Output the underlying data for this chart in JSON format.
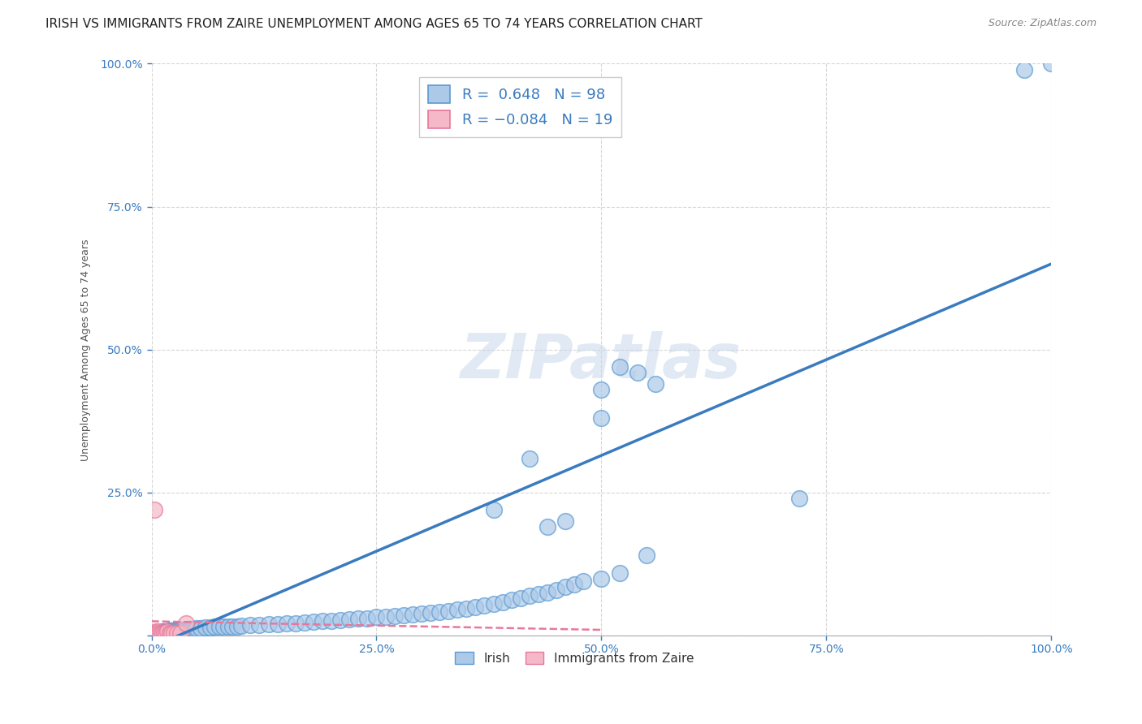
{
  "title": "IRISH VS IMMIGRANTS FROM ZAIRE UNEMPLOYMENT AMONG AGES 65 TO 74 YEARS CORRELATION CHART",
  "source": "Source: ZipAtlas.com",
  "ylabel": "Unemployment Among Ages 65 to 74 years",
  "xlim": [
    0.0,
    1.0
  ],
  "ylim": [
    0.0,
    1.0
  ],
  "irish_R": 0.648,
  "irish_N": 98,
  "zaire_R": -0.084,
  "zaire_N": 19,
  "irish_color": "#adc9e8",
  "irish_edge_color": "#5b9bd5",
  "zaire_color": "#f4b8c8",
  "zaire_edge_color": "#e8789a",
  "irish_line_color": "#3a7bbf",
  "zaire_line_color": "#d45f7a",
  "background_color": "#ffffff",
  "grid_color": "#cccccc",
  "watermark": "ZIPatlas",
  "title_fontsize": 11,
  "axis_label_fontsize": 9,
  "irish_line_x": [
    0.0,
    1.0
  ],
  "irish_line_y": [
    -0.02,
    0.65
  ],
  "zaire_line_x": [
    0.0,
    0.5
  ],
  "zaire_line_y": [
    0.025,
    0.01
  ],
  "irish_x": [
    0.002,
    0.003,
    0.004,
    0.005,
    0.006,
    0.007,
    0.008,
    0.009,
    0.01,
    0.011,
    0.012,
    0.013,
    0.014,
    0.015,
    0.016,
    0.017,
    0.018,
    0.019,
    0.02,
    0.021,
    0.022,
    0.024,
    0.026,
    0.028,
    0.03,
    0.032,
    0.034,
    0.036,
    0.038,
    0.04,
    0.042,
    0.044,
    0.046,
    0.048,
    0.05,
    0.055,
    0.06,
    0.065,
    0.07,
    0.075,
    0.08,
    0.085,
    0.09,
    0.095,
    0.1,
    0.11,
    0.12,
    0.13,
    0.14,
    0.15,
    0.16,
    0.17,
    0.18,
    0.19,
    0.2,
    0.21,
    0.22,
    0.23,
    0.24,
    0.25,
    0.26,
    0.27,
    0.28,
    0.29,
    0.3,
    0.31,
    0.32,
    0.33,
    0.34,
    0.35,
    0.36,
    0.37,
    0.38,
    0.39,
    0.4,
    0.41,
    0.42,
    0.43,
    0.44,
    0.45,
    0.46,
    0.47,
    0.48,
    0.5,
    0.52,
    0.55,
    0.38,
    0.42,
    0.72,
    0.5,
    0.44,
    0.46,
    0.5,
    0.52,
    0.54,
    0.56,
    0.97,
    1.0
  ],
  "irish_y": [
    0.005,
    0.005,
    0.005,
    0.005,
    0.005,
    0.005,
    0.005,
    0.005,
    0.005,
    0.005,
    0.007,
    0.007,
    0.007,
    0.007,
    0.007,
    0.007,
    0.007,
    0.007,
    0.008,
    0.008,
    0.008,
    0.008,
    0.009,
    0.009,
    0.01,
    0.01,
    0.01,
    0.01,
    0.01,
    0.012,
    0.012,
    0.012,
    0.012,
    0.012,
    0.013,
    0.013,
    0.014,
    0.014,
    0.015,
    0.015,
    0.015,
    0.016,
    0.016,
    0.016,
    0.017,
    0.018,
    0.019,
    0.02,
    0.02,
    0.021,
    0.022,
    0.023,
    0.024,
    0.025,
    0.026,
    0.027,
    0.028,
    0.03,
    0.03,
    0.032,
    0.033,
    0.034,
    0.036,
    0.037,
    0.038,
    0.04,
    0.041,
    0.043,
    0.045,
    0.047,
    0.05,
    0.053,
    0.055,
    0.058,
    0.062,
    0.065,
    0.07,
    0.072,
    0.075,
    0.08,
    0.085,
    0.09,
    0.095,
    0.1,
    0.11,
    0.14,
    0.22,
    0.31,
    0.24,
    0.43,
    0.19,
    0.2,
    0.38,
    0.47,
    0.46,
    0.44,
    0.99,
    1.0
  ],
  "zaire_x": [
    0.003,
    0.005,
    0.005,
    0.006,
    0.007,
    0.008,
    0.009,
    0.01,
    0.012,
    0.014,
    0.016,
    0.018,
    0.02,
    0.022,
    0.025,
    0.028,
    0.032,
    0.038,
    0.003
  ],
  "zaire_y": [
    0.005,
    0.005,
    0.007,
    0.005,
    0.005,
    0.007,
    0.005,
    0.005,
    0.005,
    0.005,
    0.005,
    0.007,
    0.005,
    0.005,
    0.005,
    0.005,
    0.005,
    0.022,
    0.22
  ]
}
